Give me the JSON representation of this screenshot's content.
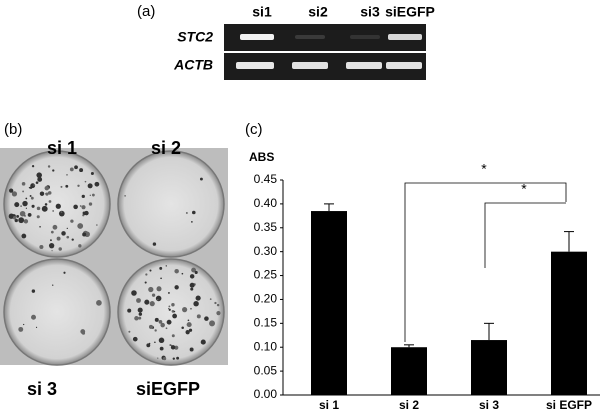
{
  "panel_a": {
    "label": "(a)",
    "lanes": [
      "si1",
      "si2",
      "si3",
      "siEGFP"
    ],
    "rows": [
      "STC2",
      "ACTB"
    ]
  },
  "panel_b": {
    "label": "(b)",
    "plates": [
      "si 1",
      "si 2",
      "si 3",
      "siEGFP"
    ]
  },
  "chart_data": {
    "type": "bar",
    "label": "(c)",
    "y_label": "ABS",
    "categories": [
      "si 1",
      "si 2",
      "si 3",
      "si EGFP"
    ],
    "values": [
      0.385,
      0.1,
      0.115,
      0.3
    ],
    "errors": [
      0.015,
      0.005,
      0.035,
      0.042
    ],
    "color": "#000000",
    "ylim": [
      0,
      0.45
    ],
    "yticks": [
      {
        "value": 0,
        "label": "0.00"
      },
      {
        "value": 0.05,
        "label": "0.05"
      },
      {
        "value": 0.1,
        "label": "0.10"
      },
      {
        "value": 0.15,
        "label": "0.15"
      },
      {
        "value": 0.2,
        "label": "0.20"
      },
      {
        "value": 0.25,
        "label": "0.25"
      },
      {
        "value": 0.3,
        "label": "0.30"
      },
      {
        "value": 0.35,
        "label": "0.35"
      },
      {
        "value": 0.4,
        "label": "0.40"
      },
      {
        "value": 0.45,
        "label": "0.45"
      }
    ],
    "grid": false,
    "annotations": [
      "*",
      "*"
    ]
  }
}
